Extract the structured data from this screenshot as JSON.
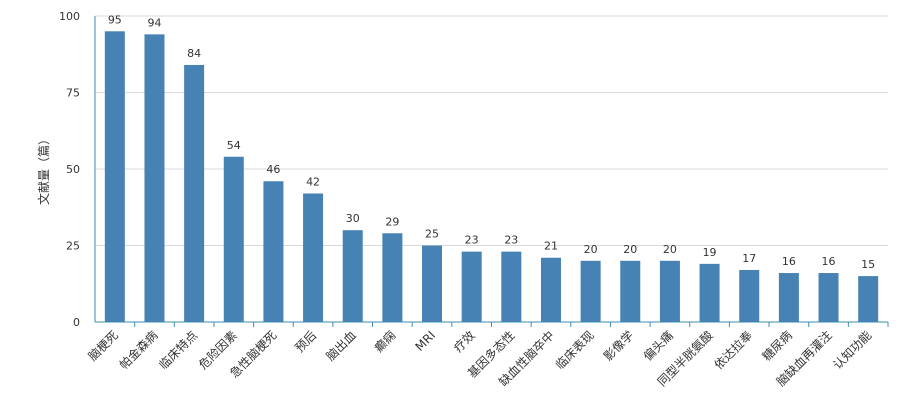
{
  "chart_data": {
    "type": "bar",
    "title": "",
    "xlabel": "",
    "ylabel": "文献量（篇）",
    "ylim": [
      0,
      100
    ],
    "yticks": [
      0,
      25,
      50,
      75,
      100
    ],
    "grid": true,
    "legend": "none",
    "bar_color": "#4682b4",
    "categories": [
      "脑梗死",
      "帕金森病",
      "临床特点",
      "危险因素",
      "急性脑梗死",
      "预后",
      "脑出血",
      "癫痫",
      "MRI",
      "疗效",
      "基因多态性",
      "缺血性脑卒中",
      "临床表现",
      "影像学",
      "偏头痛",
      "同型半胱氨酸",
      "依达拉奉",
      "糖尿病",
      "脑缺血再灌注",
      "认知功能"
    ],
    "values": [
      95,
      94,
      84,
      54,
      46,
      42,
      30,
      29,
      25,
      23,
      23,
      21,
      20,
      20,
      20,
      19,
      17,
      16,
      16,
      15
    ]
  }
}
